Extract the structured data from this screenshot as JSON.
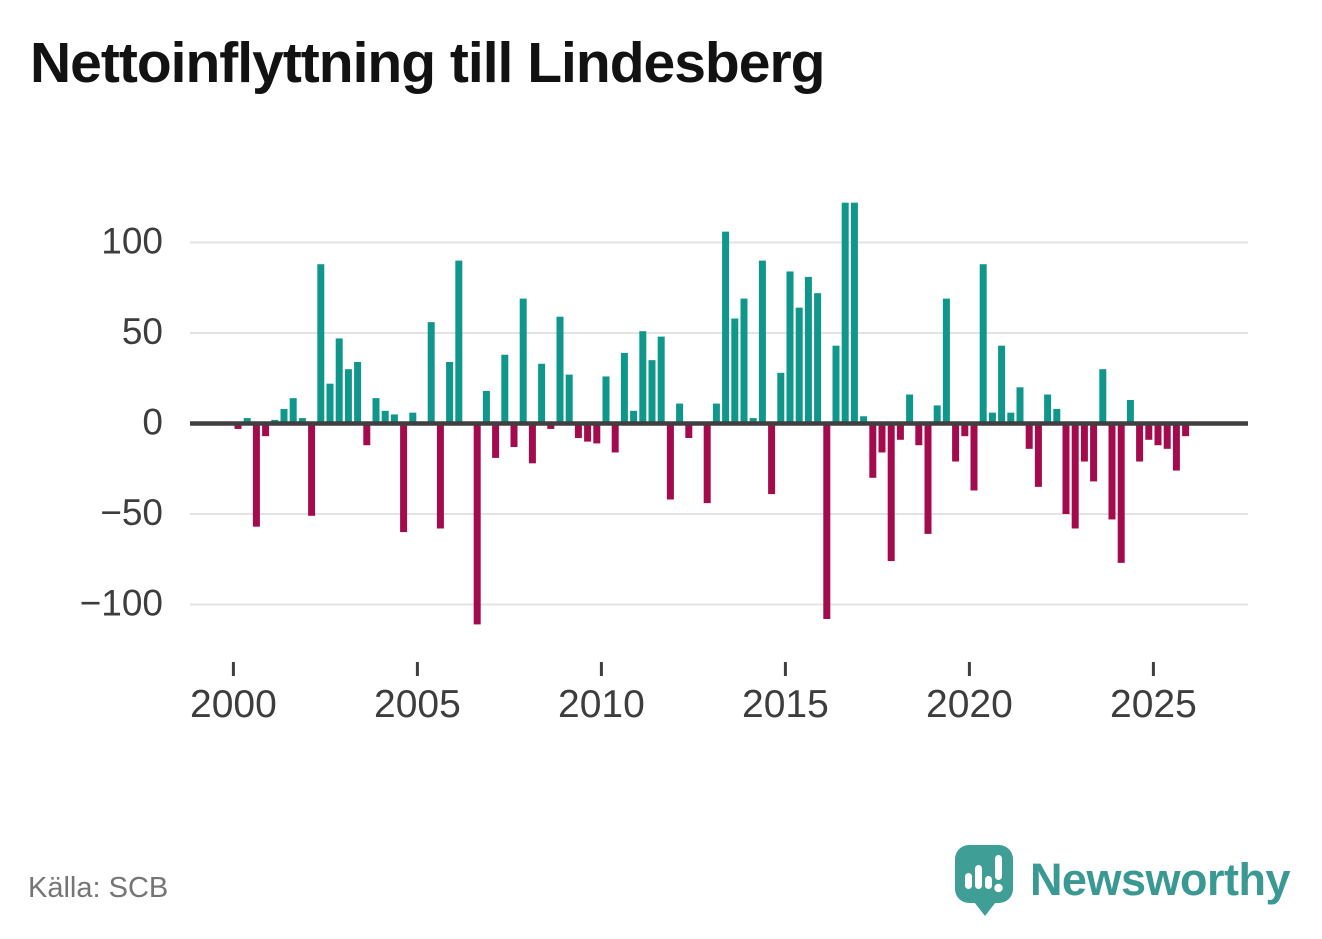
{
  "title": "Nettoinflyttning till Lindesberg",
  "source": {
    "label": "Källa: SCB"
  },
  "logo": {
    "text": "Newsworthy",
    "icon": "newsworthy-bars-icon"
  },
  "chart_data": {
    "type": "bar",
    "title": "Nettoinflyttning till Lindesberg",
    "xlabel": "",
    "ylabel": "",
    "grid": true,
    "legend": false,
    "x_unit": "quarter",
    "ylim": [
      -125,
      130
    ],
    "yticks": [
      100,
      50,
      0,
      -50,
      -100
    ],
    "ytick_labels": [
      "100",
      "50",
      "0",
      "−50",
      "−100"
    ],
    "xticks": [
      2000,
      2005,
      2010,
      2015,
      2020,
      2025
    ],
    "xtick_labels": [
      "2000",
      "2005",
      "2010",
      "2015",
      "2020",
      "2025"
    ],
    "colors": {
      "positive": "#0f978c",
      "negative": "#a30b4d",
      "gridline": "#e3e3e3",
      "axis": "#3f3f3f",
      "tick_text": "#3d3d3d"
    },
    "categories": [
      "2000 Q1",
      "2000 Q2",
      "2000 Q3",
      "2000 Q4",
      "2001 Q1",
      "2001 Q2",
      "2001 Q3",
      "2001 Q4",
      "2002 Q1",
      "2002 Q2",
      "2002 Q3",
      "2002 Q4",
      "2003 Q1",
      "2003 Q2",
      "2003 Q3",
      "2003 Q4",
      "2004 Q1",
      "2004 Q2",
      "2004 Q3",
      "2004 Q4",
      "2005 Q1",
      "2005 Q2",
      "2005 Q3",
      "2005 Q4",
      "2006 Q1",
      "2006 Q2",
      "2006 Q3",
      "2006 Q4",
      "2007 Q1",
      "2007 Q2",
      "2007 Q3",
      "2007 Q4",
      "2008 Q1",
      "2008 Q2",
      "2008 Q3",
      "2008 Q4",
      "2009 Q1",
      "2009 Q2",
      "2009 Q3",
      "2009 Q4",
      "2010 Q1",
      "2010 Q2",
      "2010 Q3",
      "2010 Q4",
      "2011 Q1",
      "2011 Q2",
      "2011 Q3",
      "2011 Q4",
      "2012 Q1",
      "2012 Q2",
      "2012 Q3",
      "2012 Q4",
      "2013 Q1",
      "2013 Q2",
      "2013 Q3",
      "2013 Q4",
      "2014 Q1",
      "2014 Q2",
      "2014 Q3",
      "2014 Q4",
      "2015 Q1",
      "2015 Q2",
      "2015 Q3",
      "2015 Q4",
      "2016 Q1",
      "2016 Q2",
      "2016 Q3",
      "2016 Q4",
      "2017 Q1",
      "2017 Q2",
      "2017 Q3",
      "2017 Q4",
      "2018 Q1",
      "2018 Q2",
      "2018 Q3",
      "2018 Q4",
      "2019 Q1",
      "2019 Q2",
      "2019 Q3",
      "2019 Q4",
      "2020 Q1",
      "2020 Q2",
      "2020 Q3",
      "2020 Q4",
      "2021 Q1",
      "2021 Q2",
      "2021 Q3",
      "2021 Q4",
      "2022 Q1",
      "2022 Q2",
      "2022 Q3",
      "2022 Q4",
      "2023 Q1",
      "2023 Q2",
      "2023 Q3",
      "2023 Q4",
      "2024 Q1",
      "2024 Q2",
      "2024 Q3",
      "2024 Q4",
      "2025 Q1",
      "2025 Q2",
      "2025 Q3",
      "2025 Q4"
    ],
    "values": [
      -3,
      3,
      -57,
      -7,
      2,
      8,
      14,
      3,
      -51,
      88,
      22,
      47,
      30,
      34,
      -12,
      14,
      7,
      5,
      -60,
      6,
      0,
      56,
      -58,
      34,
      90,
      0,
      -111,
      18,
      -19,
      38,
      -13,
      69,
      -22,
      33,
      -3,
      59,
      27,
      -8,
      -10,
      -11,
      26,
      -16,
      39,
      7,
      51,
      35,
      48,
      -42,
      11,
      -8,
      0,
      -44,
      11,
      106,
      58,
      69,
      3,
      90,
      -39,
      28,
      84,
      64,
      81,
      72,
      -108,
      43,
      122,
      122,
      4,
      -30,
      -16,
      -76,
      -9,
      16,
      -12,
      -61,
      10,
      69,
      -21,
      -7,
      -37,
      88,
      6,
      43,
      6,
      20,
      -14,
      -35,
      16,
      8,
      -50,
      -58,
      -21,
      -32,
      30,
      -53,
      -77,
      13,
      -21,
      -9,
      -12,
      -14,
      -26,
      -7
    ]
  }
}
